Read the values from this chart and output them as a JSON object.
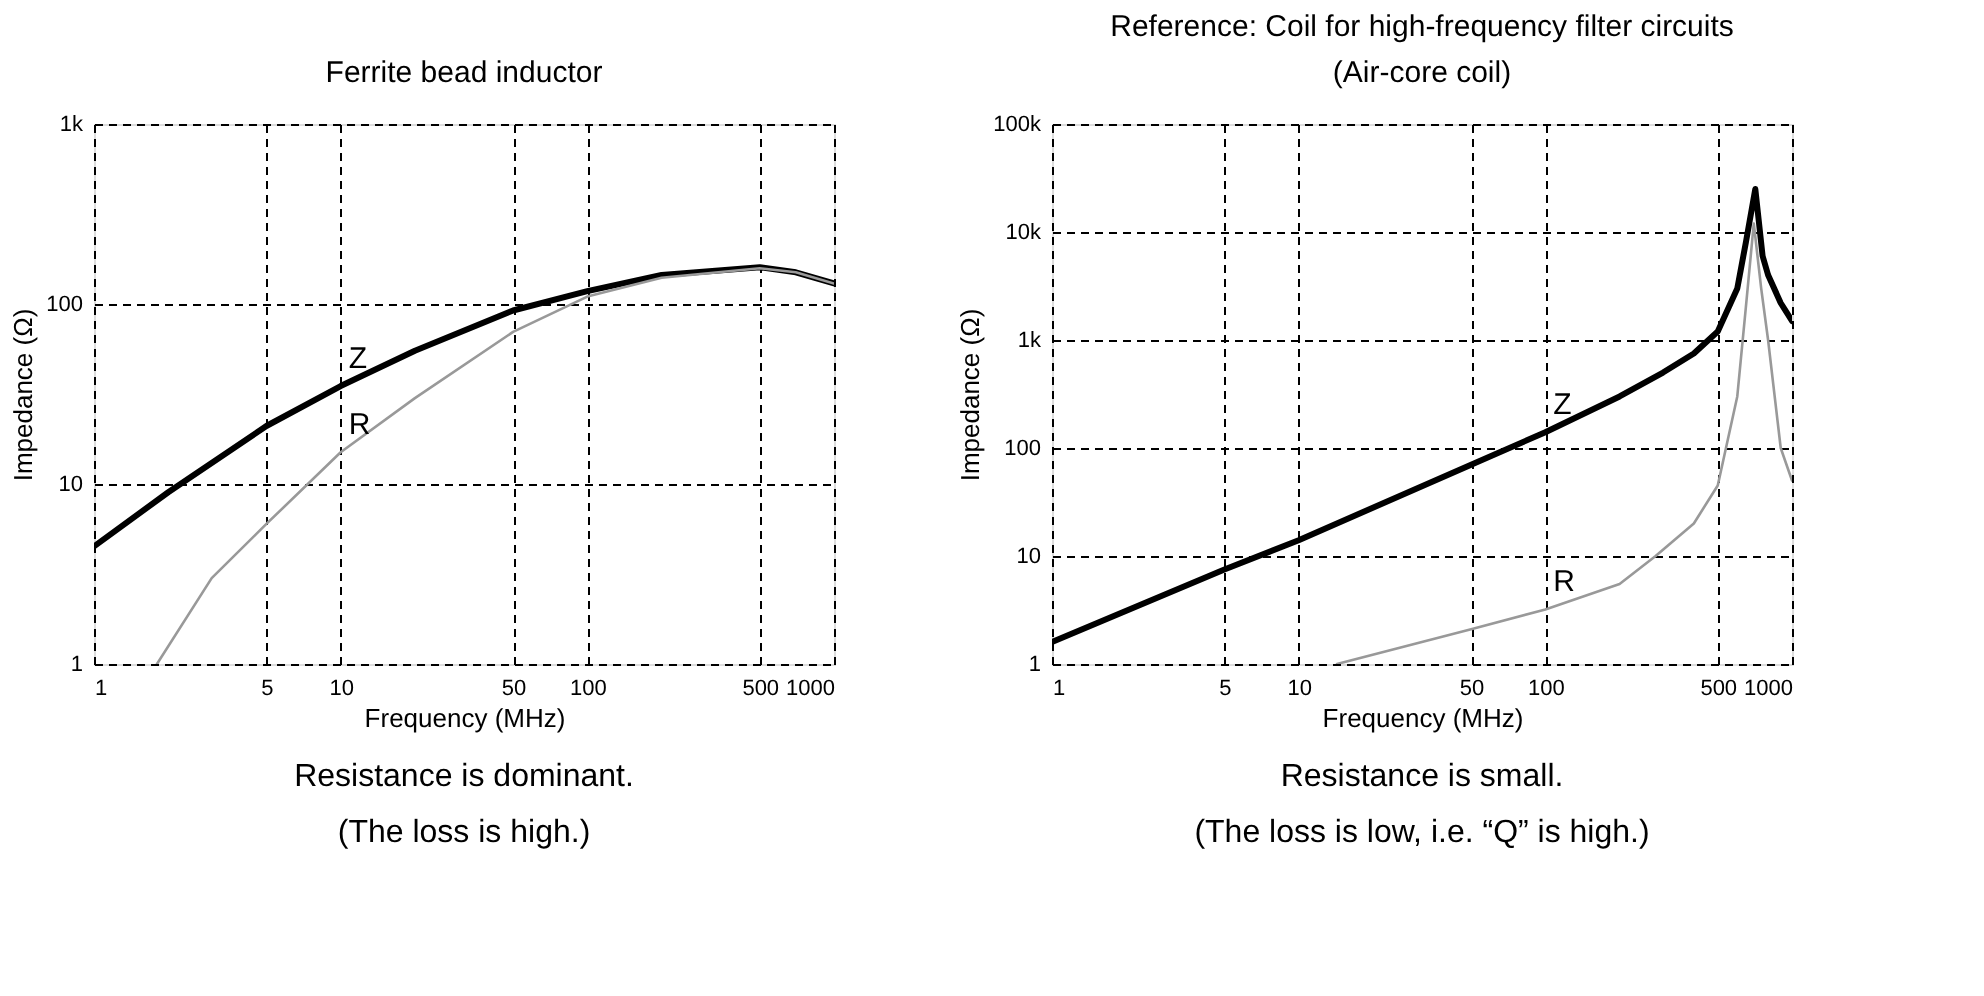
{
  "chart_data": [
    {
      "type": "line",
      "title": "Ferrite bead inductor",
      "xlabel": "Frequency (MHz)",
      "ylabel": "Impedance (Ω)",
      "log": "xy",
      "grid": true,
      "marker": "none",
      "line_style": "solid",
      "xlim": [
        1,
        1000
      ],
      "xticks": [
        1,
        5,
        10,
        50,
        100,
        500,
        1000
      ],
      "ylim": [
        1,
        1000
      ],
      "yticks": [
        1,
        10,
        100,
        {
          "value": 1000,
          "label": "1k"
        }
      ],
      "series": [
        {
          "name": "Z",
          "color": "#000000",
          "x": [
            1,
            2,
            5,
            10,
            20,
            50,
            100,
            200,
            500,
            700,
            1000
          ],
          "values": [
            4.5,
            9,
            21,
            35,
            55,
            92,
            118,
            145,
            160,
            150,
            130
          ]
        },
        {
          "name": "R",
          "color": "#999999",
          "x": [
            1.8,
            3,
            5,
            10,
            20,
            50,
            100,
            200,
            500,
            700,
            1000
          ],
          "values": [
            1,
            3,
            6,
            15,
            30,
            70,
            110,
            140,
            158,
            150,
            130
          ]
        }
      ],
      "annotations": [
        "Resistance is dominant.",
        "(The loss is high.)"
      ]
    },
    {
      "type": "line",
      "title": "Reference: Coil for high-frequency filter circuits",
      "subtitle": "(Air-core coil)",
      "xlabel": "Frequency (MHz)",
      "ylabel": "Impedance (Ω)",
      "log": "xy",
      "grid": true,
      "marker": "none",
      "line_style": "solid",
      "xlim": [
        1,
        1000
      ],
      "xticks": [
        1,
        5,
        10,
        50,
        100,
        500,
        1000
      ],
      "ylim": [
        1,
        100000
      ],
      "yticks": [
        1,
        10,
        100,
        {
          "value": 1000,
          "label": "1k"
        },
        {
          "value": 10000,
          "label": "10k"
        },
        {
          "value": 100000,
          "label": "100k"
        }
      ],
      "series": [
        {
          "name": "Z",
          "color": "#000000",
          "x": [
            1,
            5,
            10,
            50,
            100,
            200,
            300,
            400,
            500,
            600,
            650,
            710,
            760,
            800,
            900,
            1000
          ],
          "values": [
            1.6,
            7.5,
            14,
            70,
            140,
            300,
            500,
            750,
            1200,
            3000,
            8000,
            25000,
            6000,
            4000,
            2200,
            1500
          ]
        },
        {
          "name": "R",
          "color": "#999999",
          "x": [
            14.3,
            50,
            100,
            200,
            280,
            400,
            500,
            600,
            650,
            700,
            750,
            800,
            900,
            1000
          ],
          "values": [
            1,
            2.1,
            3.2,
            5.5,
            10,
            20,
            45,
            300,
            2000,
            12000,
            3000,
            1000,
            100,
            50
          ]
        }
      ],
      "annotations": [
        "Resistance is small.",
        "(The loss is low, i.e. “Q” is high.)"
      ]
    }
  ]
}
